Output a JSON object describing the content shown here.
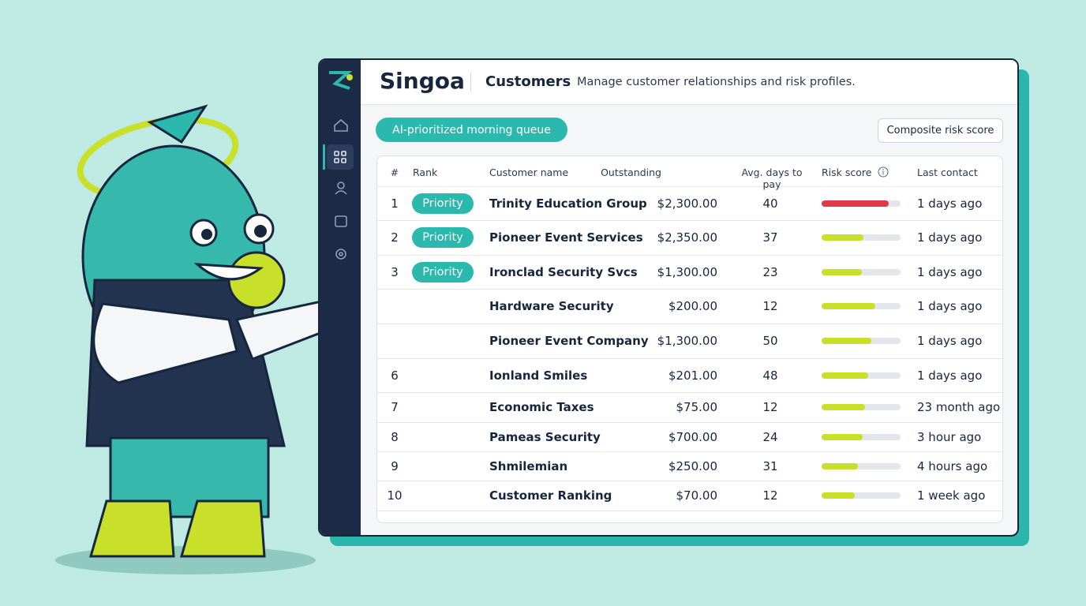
{
  "header": {
    "brand": "Singoa",
    "section": "Customers",
    "description": "Manage customer relationships and risk profiles."
  },
  "toolbar": {
    "queue_button": "AI-prioritized morning queue",
    "risk_button": "Composite risk score"
  },
  "table": {
    "columns": [
      "#",
      "Rank",
      "Customer name",
      "Outstanding",
      "Avg. days to pay",
      "Risk score",
      "Last contact"
    ],
    "rows": [
      {
        "num": 1,
        "rank": "Priority",
        "name": "Trinity Education Group",
        "outstanding": "$2,300.00",
        "days": 40,
        "risk": 85,
        "risk_color": "#e2394a",
        "last_contact": "1 days ago"
      },
      {
        "num": 2,
        "rank": "Priority",
        "name": "Pioneer Event Services",
        "outstanding": "$2,350.00",
        "days": 37,
        "risk": 53,
        "risk_color": "#c9e02a",
        "last_contact": "1 days ago"
      },
      {
        "num": 3,
        "rank": "Priority",
        "name": "Ironclad Security Svcs",
        "outstanding": "$1,300.00",
        "days": 23,
        "risk": 51,
        "risk_color": "#c9e02a",
        "last_contact": "1 days ago"
      },
      {
        "num": null,
        "rank": null,
        "name": "Hardware Security",
        "outstanding": "$200.00",
        "days": 12,
        "risk": 68,
        "risk_color": "#c9e02a",
        "last_contact": "1 days ago"
      },
      {
        "num": null,
        "rank": null,
        "name": "Pioneer Event Company",
        "outstanding": "$1,300.00",
        "days": 50,
        "risk": 63,
        "risk_color": "#c9e02a",
        "last_contact": "1 days ago"
      },
      {
        "num": 6,
        "rank": null,
        "name": "Ionland Smiles",
        "outstanding": "$201.00",
        "days": 48,
        "risk": 59,
        "risk_color": "#c9e02a",
        "last_contact": "1 days ago"
      },
      {
        "num": 7,
        "rank": null,
        "name": "Economic Taxes",
        "outstanding": "$75.00",
        "days": 12,
        "risk": 55,
        "risk_color": "#c9e02a",
        "last_contact": "23 month ago"
      },
      {
        "num": 8,
        "rank": null,
        "name": "Pameas Security",
        "outstanding": "$700.00",
        "days": 24,
        "risk": 52,
        "risk_color": "#c9e02a",
        "last_contact": "3 hour ago"
      },
      {
        "num": 9,
        "rank": null,
        "name": "Shmilemian",
        "outstanding": "$250.00",
        "days": 31,
        "risk": 46,
        "risk_color": "#c9e02a",
        "last_contact": "4 hours ago"
      },
      {
        "num": 10,
        "rank": null,
        "name": "Customer Ranking",
        "outstanding": "$70.00",
        "days": 12,
        "risk": 42,
        "risk_color": "#c9e02a",
        "last_contact": "1 week ago"
      }
    ]
  }
}
